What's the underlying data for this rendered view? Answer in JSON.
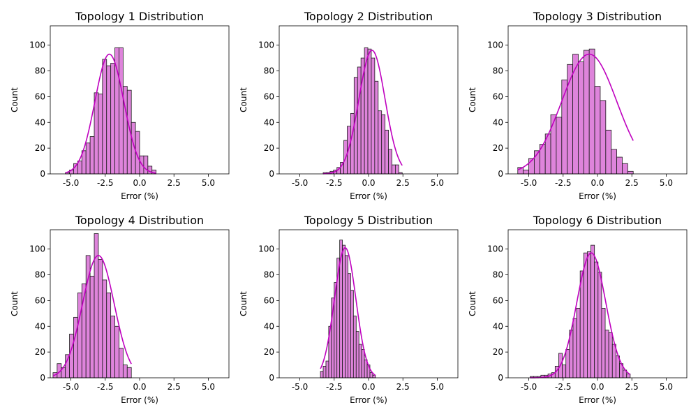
{
  "chart_data": [
    {
      "type": "bar",
      "title": "Topology 1 Distribution",
      "xlabel": "Error (%)",
      "ylabel": "Count",
      "xlim": [
        -6.5,
        6.5
      ],
      "ylim": [
        0,
        115
      ],
      "xticks": [
        "-5.0",
        "-2.5",
        "0.0",
        "2.5",
        "5.0"
      ],
      "xtick_values": [
        -5,
        -2.5,
        0,
        2.5,
        5
      ],
      "yticks": [
        0,
        20,
        40,
        60,
        80,
        100
      ],
      "bin_start": -5.4,
      "bin_width": 0.3,
      "counts": [
        1,
        3,
        8,
        10,
        18,
        24,
        29,
        63,
        62,
        89,
        84,
        86,
        98,
        98,
        68,
        65,
        40,
        33,
        14,
        14,
        6,
        3
      ],
      "kde_peak": 93,
      "kde_mean": -2.2,
      "kde_sd": 1.05
    },
    {
      "type": "bar",
      "title": "Topology 2 Distribution",
      "xlabel": "Error (%)",
      "ylabel": "Count",
      "xlim": [
        -6.5,
        6.5
      ],
      "ylim": [
        0,
        115
      ],
      "xticks": [
        "-5.0",
        "-2.5",
        "0.0",
        "2.5",
        "5.0"
      ],
      "xtick_values": [
        -5,
        -2.5,
        0,
        2.5,
        5
      ],
      "yticks": [
        0,
        20,
        40,
        60,
        80,
        100
      ],
      "bin_start": -3.3,
      "bin_width": 0.25,
      "counts": [
        1,
        1,
        2,
        3,
        5,
        9,
        26,
        37,
        47,
        75,
        83,
        90,
        98,
        97,
        90,
        72,
        49,
        46,
        34,
        19,
        7,
        7,
        1
      ],
      "kde_peak": 96,
      "kde_mean": 0.25,
      "kde_sd": 0.95
    },
    {
      "type": "bar",
      "title": "Topology 3 Distribution",
      "xlabel": "Error (%)",
      "ylabel": "Count",
      "xlim": [
        -6.5,
        6.5
      ],
      "ylim": [
        0,
        115
      ],
      "xticks": [
        "-5.0",
        "-2.5",
        "0.0",
        "2.5",
        "5.0"
      ],
      "xtick_values": [
        -5,
        -2.5,
        0,
        2.5,
        5
      ],
      "yticks": [
        0,
        20,
        40,
        60,
        80,
        100
      ],
      "bin_start": -5.8,
      "bin_width": 0.4,
      "counts": [
        5,
        3,
        12,
        18,
        23,
        31,
        46,
        44,
        73,
        85,
        93,
        87,
        96,
        97,
        68,
        57,
        34,
        19,
        13,
        8,
        2
      ],
      "kde_peak": 93,
      "kde_mean": -0.6,
      "kde_sd": 2.0
    },
    {
      "type": "bar",
      "title": "Topology 4 Distribution",
      "xlabel": "Error (%)",
      "ylabel": "Count",
      "xlim": [
        -6.5,
        6.5
      ],
      "ylim": [
        0,
        115
      ],
      "xticks": [
        "-5.0",
        "-2.5",
        "0.0",
        "2.5",
        "5.0"
      ],
      "xtick_values": [
        -5,
        -2.5,
        0,
        2.5,
        5
      ],
      "yticks": [
        0,
        20,
        40,
        60,
        80,
        100
      ],
      "bin_start": -6.3,
      "bin_width": 0.3,
      "counts": [
        4,
        11,
        8,
        18,
        34,
        47,
        66,
        73,
        95,
        79,
        112,
        92,
        76,
        66,
        48,
        40,
        23,
        10,
        8
      ],
      "kde_peak": 95,
      "kde_mean": -3.0,
      "kde_sd": 1.15
    },
    {
      "type": "bar",
      "title": "Topology 5 Distribution",
      "xlabel": "Error (%)",
      "ylabel": "Count",
      "xlim": [
        -6.5,
        6.5
      ],
      "ylim": [
        0,
        115
      ],
      "xticks": [
        "-5.0",
        "-2.5",
        "0.0",
        "2.5",
        "5.0"
      ],
      "xtick_values": [
        -5,
        -2.5,
        0,
        2.5,
        5
      ],
      "yticks": [
        0,
        20,
        40,
        60,
        80,
        100
      ],
      "bin_start": -3.5,
      "bin_width": 0.2,
      "counts": [
        5,
        9,
        13,
        40,
        62,
        74,
        93,
        107,
        103,
        95,
        81,
        68,
        48,
        36,
        26,
        22,
        14,
        10,
        4,
        2
      ],
      "kde_peak": 101,
      "kde_mean": -1.7,
      "kde_sd": 0.78
    },
    {
      "type": "bar",
      "title": "Topology 6 Distribution",
      "xlabel": "Error (%)",
      "ylabel": "Count",
      "xlim": [
        -6.5,
        6.5
      ],
      "ylim": [
        0,
        115
      ],
      "xticks": [
        "-5.0",
        "-2.5",
        "0.0",
        "2.5",
        "5.0"
      ],
      "xtick_values": [
        -5,
        -2.5,
        0,
        2.5,
        5
      ],
      "yticks": [
        0,
        20,
        40,
        60,
        80,
        100
      ],
      "bin_start": -4.9,
      "bin_width": 0.26,
      "counts": [
        1,
        1,
        1,
        2,
        2,
        3,
        4,
        9,
        19,
        10,
        22,
        37,
        46,
        54,
        83,
        97,
        98,
        103,
        90,
        82,
        54,
        37,
        35,
        26,
        17,
        11,
        6,
        3
      ],
      "kde_peak": 97,
      "kde_mean": -0.45,
      "kde_sd": 1.05
    }
  ],
  "colors": {
    "bar_fill": "#de84db",
    "bar_edge": "#1a1a1a",
    "kde_line": "#bf00bf"
  }
}
